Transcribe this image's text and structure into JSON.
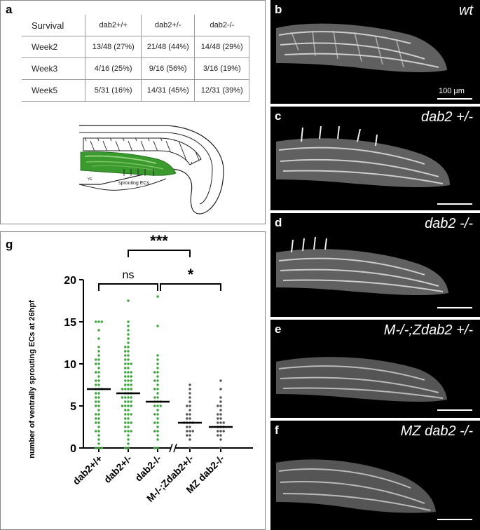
{
  "panel_a": {
    "label": "a",
    "table": {
      "header": [
        "Survival",
        "dab2+/+",
        "dab2+/-",
        "dab2-/-"
      ],
      "rows": [
        [
          "Week2",
          "13/48 (27%)",
          "21/48 (44%)",
          "14/48 (29%)"
        ],
        [
          "Week3",
          "4/16 (25%)",
          "9/16 (56%)",
          "3/16 (19%)"
        ],
        [
          "Week5",
          "5/31 (16%)",
          "14/31 (45%)",
          "12/31 (39%)"
        ]
      ]
    },
    "schematic": {
      "yolk_label": "YE",
      "annotation": "sprouting ECs"
    }
  },
  "micro_panels": [
    {
      "label": "b",
      "title": "wt",
      "scale_label": "100 µm"
    },
    {
      "label": "c",
      "title": "dab2 +/-"
    },
    {
      "label": "d",
      "title": "dab2 -/-"
    },
    {
      "label": "e",
      "title": "M-/-;Zdab2 +/-"
    },
    {
      "label": "f",
      "title": "MZ dab2 -/-"
    }
  ],
  "panel_g": {
    "label": "g"
  },
  "colors": {
    "wt_group": "#3aa63a",
    "maternal_group": "#555555",
    "bar": "#000000"
  },
  "chart_data": {
    "type": "scatter",
    "ylabel": "number of ventrally sprouting ECs at 26hpf",
    "ylim": [
      0,
      20
    ],
    "yticks": [
      0,
      5,
      10,
      15,
      20
    ],
    "categories": [
      "dab2+/+",
      "dab2+/-",
      "dab2-/-",
      "M-/-;Zdab2+/-",
      "MZ dab2-/-"
    ],
    "axis_break_after": "dab2-/-",
    "medians": [
      7,
      6.5,
      5.5,
      3,
      2.5
    ],
    "point_colors": [
      "#3aa63a",
      "#3aa63a",
      "#3aa63a",
      "#555555",
      "#555555"
    ],
    "points": [
      [
        0,
        0,
        0,
        0.5,
        1,
        1.5,
        2,
        2,
        2.5,
        3,
        3,
        3.5,
        3.5,
        4,
        4,
        4.5,
        5,
        5,
        5.5,
        5.5,
        6,
        6,
        6.5,
        6.5,
        7,
        7,
        7,
        7.5,
        7.5,
        8,
        8,
        8.5,
        9,
        9,
        9.5,
        10,
        10,
        10.5,
        10.5,
        11,
        11.5,
        12,
        13,
        14,
        15,
        15,
        15
      ],
      [
        0,
        0,
        0.5,
        1,
        1.5,
        2,
        2,
        2,
        2.5,
        2.5,
        3,
        3,
        3,
        3.5,
        3.5,
        4,
        4,
        4,
        4.5,
        4.5,
        5,
        5,
        5,
        5,
        5.5,
        5.5,
        5.5,
        6,
        6,
        6,
        6,
        6.5,
        6.5,
        6.5,
        7,
        7,
        7,
        7,
        7.5,
        7.5,
        7.5,
        8,
        8,
        8,
        8.5,
        8.5,
        8.5,
        9,
        9,
        9,
        9.5,
        9.5,
        10,
        10,
        10,
        10.5,
        10.5,
        11,
        11,
        11.5,
        11.5,
        12,
        12,
        12.5,
        13,
        13.5,
        14,
        14.5,
        15,
        17.5
      ],
      [
        0,
        0,
        1,
        1.5,
        2,
        2,
        2.5,
        3,
        3,
        3.5,
        4,
        4,
        4.5,
        5,
        5,
        5,
        5.5,
        5.5,
        5.5,
        6,
        6,
        6.5,
        7,
        7,
        7.5,
        8,
        8,
        8.5,
        9,
        9,
        9.5,
        10,
        10.5,
        11,
        14.5,
        18
      ],
      [
        0,
        1,
        1.5,
        1.5,
        2,
        2,
        2,
        2.5,
        2.5,
        3,
        3,
        3,
        3,
        3.5,
        3.5,
        4,
        4,
        4.5,
        5,
        5,
        5.5,
        6,
        6.5,
        7,
        7.5
      ],
      [
        0,
        1,
        1.5,
        1.5,
        2,
        2,
        2,
        2.5,
        2.5,
        2.5,
        3,
        3,
        3,
        3.5,
        3.5,
        4,
        4,
        4.5,
        5,
        5,
        5.5,
        6,
        7,
        8
      ]
    ],
    "comparisons": [
      {
        "from": "dab2+/+",
        "to": "dab2-/-",
        "label": "ns"
      },
      {
        "from": "dab2-/-",
        "to": "MZ dab2-/-",
        "label": "*"
      },
      {
        "from": "dab2+/-",
        "to": "M-/-;Zdab2+/-",
        "label": "***"
      }
    ]
  }
}
